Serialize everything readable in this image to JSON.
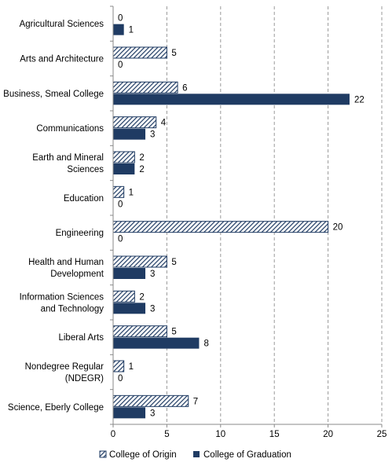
{
  "chart_data": {
    "type": "bar",
    "orientation": "horizontal",
    "categories": [
      "Agricultural Sciences",
      "Arts and Architecture",
      "Business, Smeal College",
      "Communications",
      "Earth and Mineral Sciences",
      "Education",
      "Engineering",
      "Health and Human Development",
      "Information Sciences and Technology",
      "Liberal Arts",
      "Nondegree Regular (NDEGR)",
      "Science, Eberly College"
    ],
    "category_lines": [
      [
        "Agricultural Sciences"
      ],
      [
        "Arts and Architecture"
      ],
      [
        "Business, Smeal College"
      ],
      [
        "Communications"
      ],
      [
        "Earth and Mineral",
        "Sciences"
      ],
      [
        "Education"
      ],
      [
        "Engineering"
      ],
      [
        "Health and Human",
        "Development"
      ],
      [
        "Information Sciences",
        "and Technology"
      ],
      [
        "Liberal Arts"
      ],
      [
        "Nondegree Regular",
        "(NDEGR)"
      ],
      [
        "Science, Eberly College"
      ]
    ],
    "series": [
      {
        "name": "College of Origin",
        "values": [
          0,
          5,
          6,
          4,
          2,
          1,
          20,
          5,
          2,
          5,
          1,
          7
        ],
        "color": "#1f3b63",
        "pattern": "diagonal-hatch"
      },
      {
        "name": "College of Graduation",
        "values": [
          1,
          0,
          22,
          3,
          2,
          0,
          0,
          3,
          3,
          8,
          0,
          3
        ],
        "color": "#1f3b63",
        "pattern": "solid"
      }
    ],
    "xlim": [
      0,
      25
    ],
    "xticks": [
      0,
      5,
      10,
      15,
      20,
      25
    ],
    "grid": "vertical dashed",
    "legend_position": "bottom",
    "title": "",
    "xlabel": "",
    "ylabel": ""
  }
}
